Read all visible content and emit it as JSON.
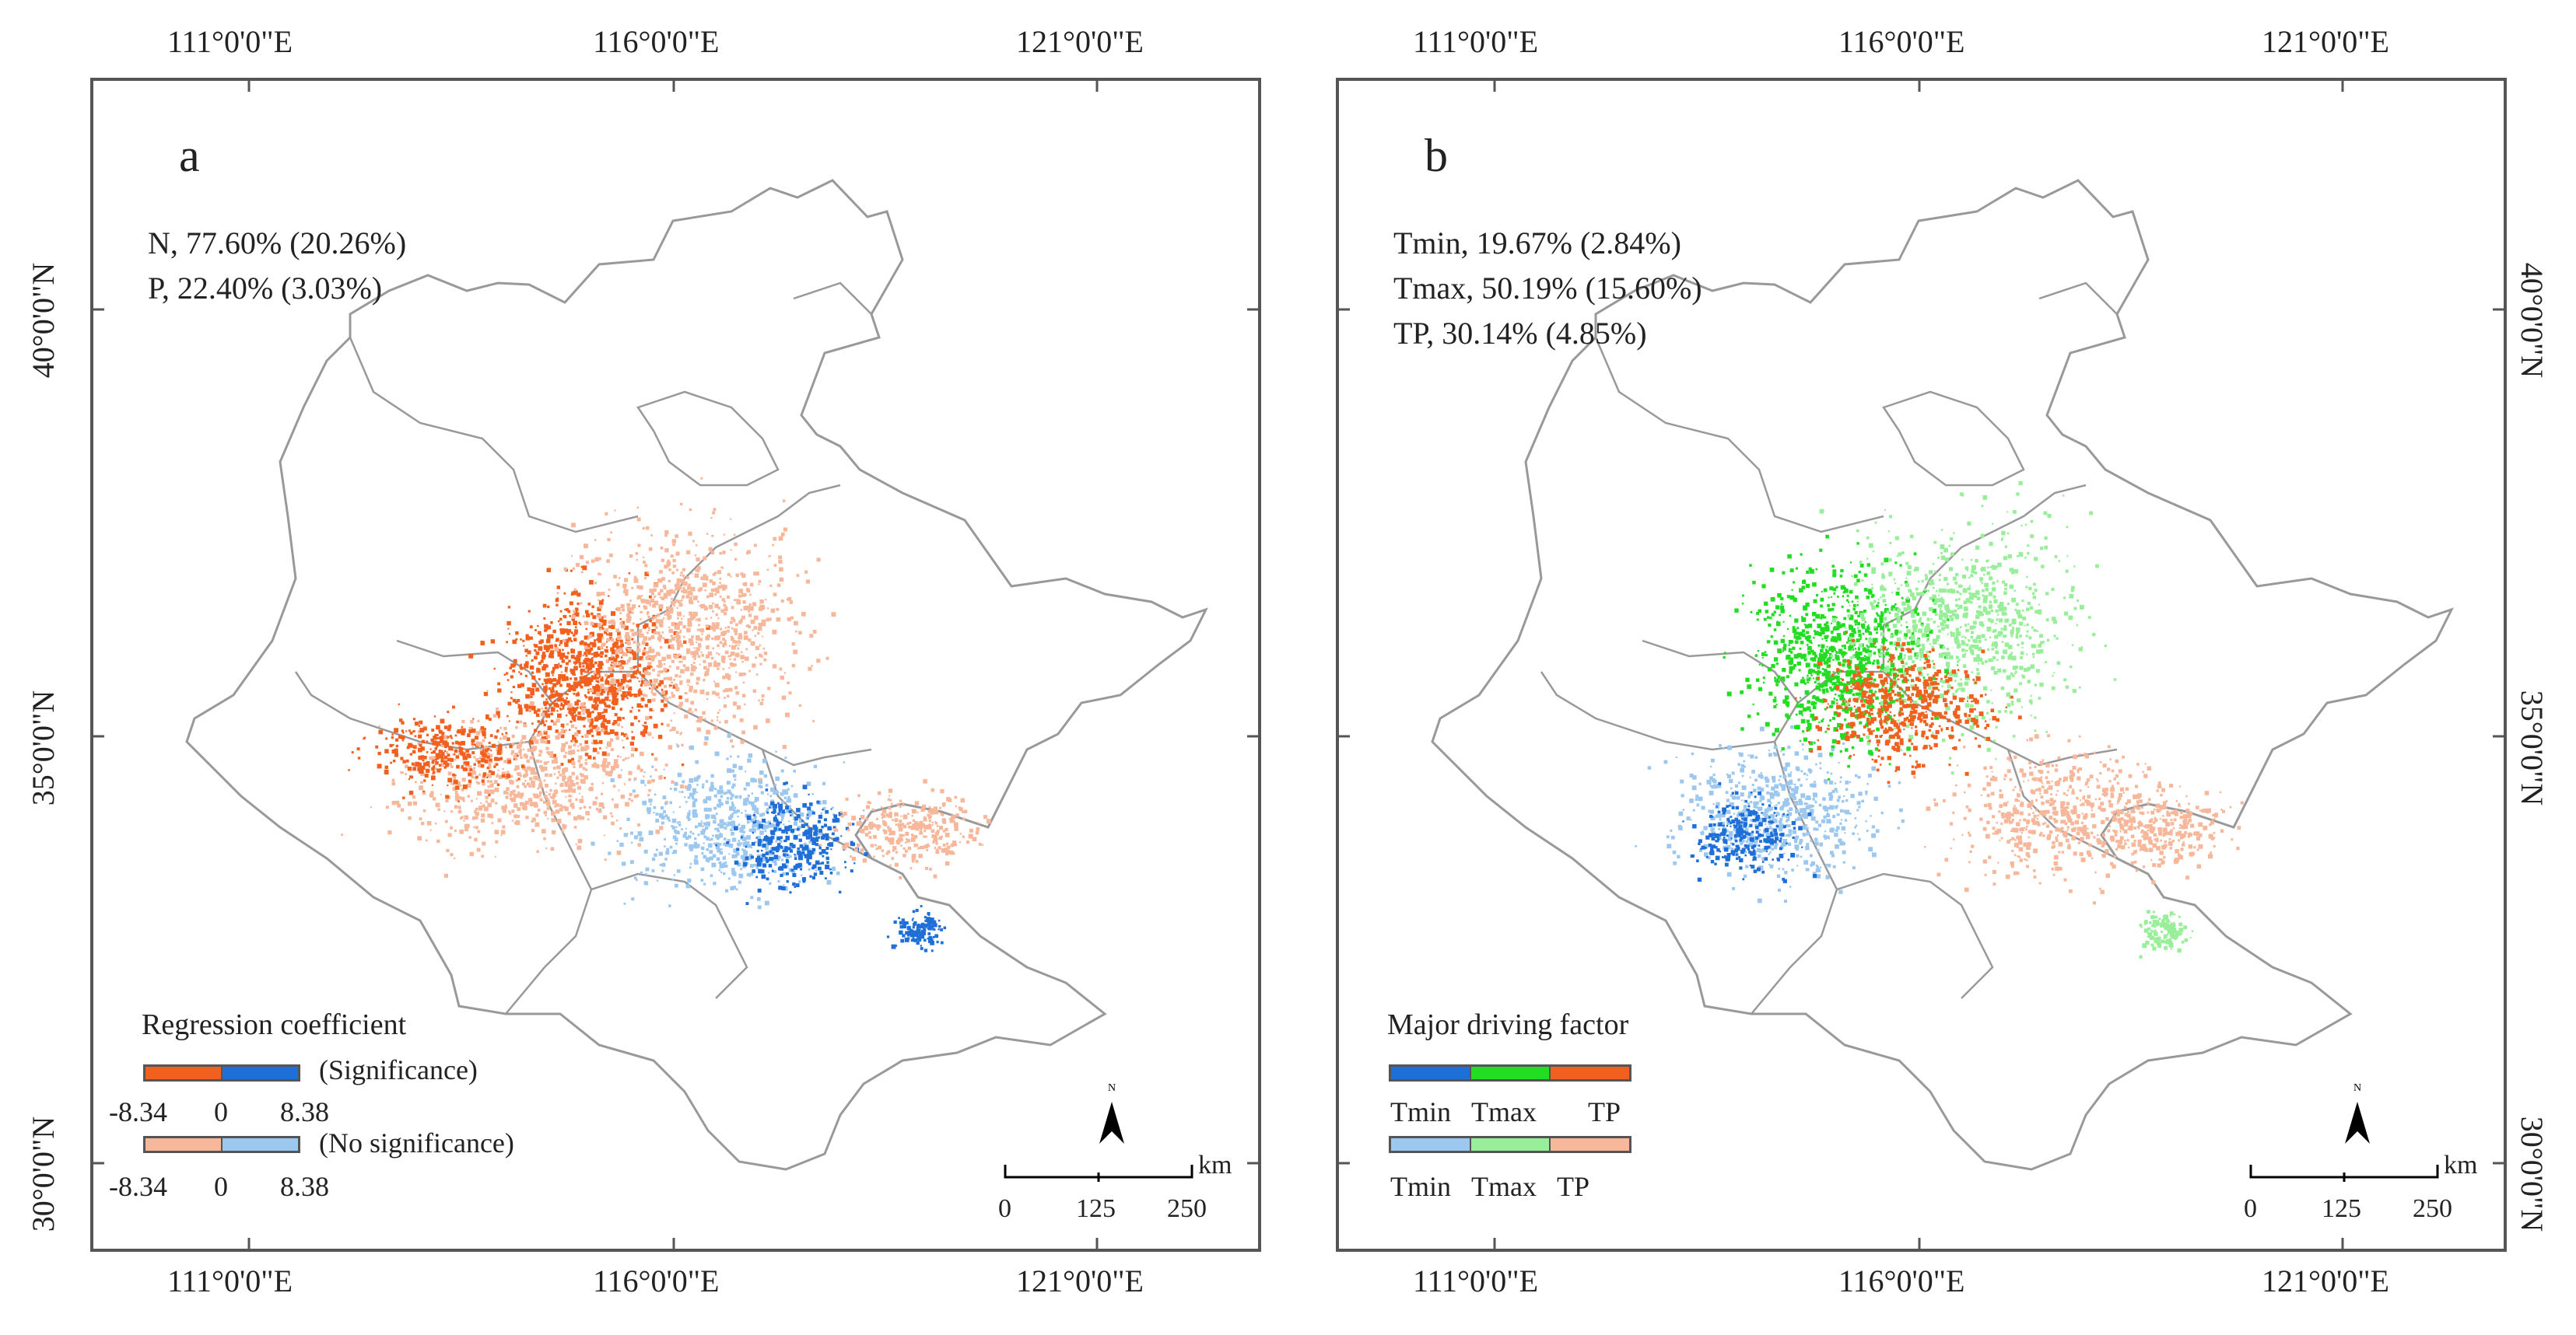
{
  "axis": {
    "lon_labels": [
      "111°0'0\"E",
      "116°0'0\"E",
      "121°0'0\"E"
    ],
    "lat_labels": [
      "40°0'0\"N",
      "35°0'0\"N",
      "30°0'0\"N"
    ]
  },
  "panel_a": {
    "letter": "a",
    "stats": [
      "N, 77.60% (20.26%)",
      "P, 22.40% (3.03%)"
    ],
    "legend": {
      "title": "Regression coefficient",
      "row1_label": "(Significance)",
      "row2_label": "(No significance)",
      "min": "-8.34",
      "mid": "0",
      "max": "8.38"
    },
    "colors": {
      "neg_sig": "#f2601f",
      "pos_sig": "#1f6fd8",
      "neg_nosig": "#f7b79a",
      "pos_nosig": "#9cc8ef"
    }
  },
  "panel_b": {
    "letter": "b",
    "stats": [
      "Tmin, 19.67% (2.84%)",
      "Tmax, 50.19% (15.60%)",
      "TP, 30.14% (4.85%)"
    ],
    "legend": {
      "title": "Major driving factor",
      "labels": [
        "Tmin",
        "Tmax",
        "TP"
      ]
    },
    "colors": {
      "tmin_sig": "#1f6fd8",
      "tmax_sig": "#22dd22",
      "tp_sig": "#f2601f",
      "tmin_nosig": "#9cc8ef",
      "tmax_nosig": "#99ee99",
      "tp_nosig": "#f7b79a"
    }
  },
  "scale_bar": {
    "labels": [
      "0",
      "125",
      "250"
    ],
    "unit": "km"
  },
  "north_arrow": {
    "label": "N",
    "icon": "north-arrow-icon"
  },
  "colors": {
    "boundary": "#999999",
    "frame": "#555555"
  }
}
